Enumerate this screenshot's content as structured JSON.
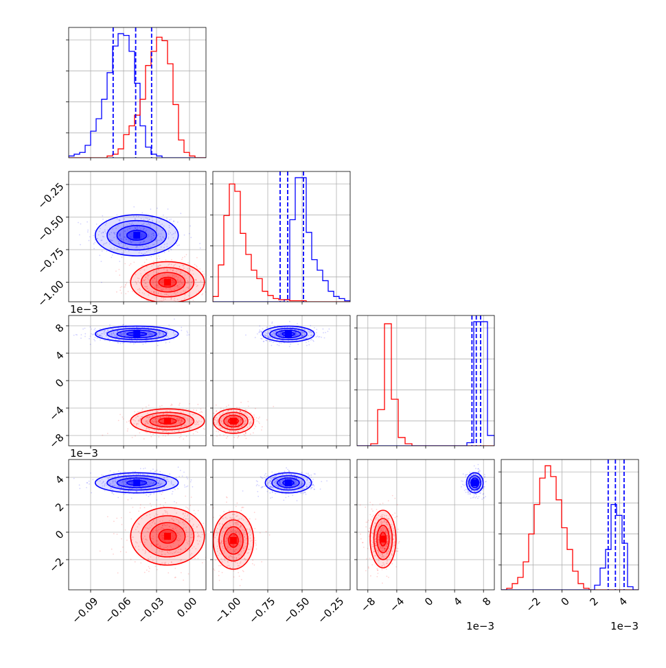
{
  "chart_data": [
    {
      "type": "histogram",
      "panel": "hist-param-1",
      "x_range": [
        -0.11,
        0.015
      ],
      "x_ticks": [
        "-0.09",
        "-0.06",
        "-0.03",
        "0.00"
      ],
      "series": [
        {
          "color": "#0000ff",
          "bins": {
            "start": -0.11,
            "width": 0.005,
            "counts": [
              1,
              2,
              3,
              7,
              15,
              22,
              33,
              48,
              63,
              70,
              69,
              60,
              42,
              18,
              6,
              2,
              1,
              0,
              0,
              0,
              0,
              0,
              0,
              0,
              0
            ]
          }
        },
        {
          "color": "#ff0000",
          "bins": {
            "start": -0.11,
            "width": 0.005,
            "counts": [
              0,
              0,
              0,
              0,
              0,
              0,
              0,
              1,
              2,
              5,
              13,
              18,
              24,
              33,
              52,
              60,
              68,
              66,
              53,
              30,
              10,
              3,
              1,
              0,
              0
            ]
          }
        }
      ],
      "quantile_lines": {
        "color": "#0000ff",
        "values": [
          -0.0695,
          -0.049,
          -0.0345
        ]
      }
    },
    {
      "type": "histogram",
      "panel": "hist-param-2",
      "x_range": [
        -1.15,
        -0.15
      ],
      "x_ticks": [
        "-1.00",
        "-0.75",
        "-0.50",
        "-0.25"
      ],
      "series": [
        {
          "color": "#0000ff",
          "bins": {
            "start": -1.15,
            "width": 0.04,
            "counts": [
              0,
              0,
              0,
              0,
              0,
              0,
              0,
              0,
              0,
              0,
              0,
              0,
              0,
              2,
              78,
              118,
              118,
              66,
              40,
              30,
              20,
              10,
              5,
              3,
              1
            ]
          }
        },
        {
          "color": "#ff0000",
          "bins": {
            "start": -1.15,
            "width": 0.04,
            "counts": [
              5,
              35,
              82,
              112,
              105,
              65,
              45,
              30,
              22,
              10,
              6,
              3,
              2,
              2,
              1,
              1,
              1,
              0,
              0,
              0,
              0,
              0,
              0,
              0,
              0
            ]
          }
        }
      ],
      "quantile_lines": {
        "color": "#0000ff",
        "values": [
          -0.66,
          -0.605,
          -0.49
        ]
      }
    },
    {
      "type": "histogram",
      "panel": "hist-param-3",
      "x_scale_label": "1e−3",
      "x_range": [
        -9.5,
        9.5
      ],
      "x_ticks": [
        "-8",
        "-4",
        "0",
        "4",
        "8"
      ],
      "series": [
        {
          "color": "#ff0000",
          "bins": {
            "start": -9.5,
            "width": 0.95,
            "counts": [
              0,
              0,
              2,
              35,
              118,
              45,
              8,
              2,
              0,
              0,
              0,
              0,
              0,
              0,
              0,
              0,
              0,
              0,
              0,
              0
            ]
          }
        },
        {
          "color": "#0000ff",
          "bins": {
            "start": -9.5,
            "width": 0.95,
            "counts": [
              0,
              0,
              0,
              0,
              0,
              0,
              0,
              0,
              0,
              0,
              0,
              0,
              0,
              0,
              0,
              0,
              3,
              120,
              120,
              10
            ]
          }
        }
      ],
      "quantile_lines": {
        "color": "#0000ff",
        "values": [
          6.4,
          7.0,
          7.6
        ]
      }
    },
    {
      "type": "histogram",
      "panel": "hist-param-4",
      "x_scale_label": "1e−3",
      "x_range": [
        -4.2,
        5.3
      ],
      "x_ticks": [
        "-2",
        "0",
        "2",
        "4"
      ],
      "series": [
        {
          "color": "#ff0000",
          "bins": {
            "start": -4.2,
            "width": 0.38,
            "counts": [
              0,
              1,
              4,
              8,
              18,
              36,
              55,
              72,
              80,
              73,
              58,
              40,
              26,
              12,
              4,
              1,
              0,
              0,
              0,
              0,
              0,
              0,
              0,
              0,
              0
            ]
          }
        },
        {
          "color": "#0000ff",
          "bins": {
            "start": -4.2,
            "width": 0.38,
            "counts": [
              0,
              0,
              0,
              0,
              0,
              0,
              0,
              0,
              0,
              0,
              0,
              0,
              0,
              0,
              0,
              0,
              0,
              3,
              14,
              26,
              55,
              48,
              30,
              2,
              0
            ]
          }
        }
      ],
      "quantile_lines": {
        "color": "#0000ff",
        "values": [
          3.2,
          3.7,
          4.3
        ]
      }
    },
    {
      "type": "scatter-density",
      "panel": "corner-2-1",
      "x_range": [
        -0.11,
        0.015
      ],
      "y_range": [
        -1.15,
        -0.15
      ],
      "y_ticks": [
        "-0.25",
        "-0.50",
        "-0.75",
        "-1.00"
      ],
      "series": [
        {
          "color": "#0000ff",
          "center": [
            -0.048,
            -0.64
          ],
          "spread": [
            0.018,
            0.075
          ]
        },
        {
          "color": "#ff0000",
          "center": [
            -0.02,
            -1.0
          ],
          "spread": [
            0.016,
            0.075
          ]
        }
      ]
    },
    {
      "type": "scatter-density",
      "panel": "corner-3-1",
      "x_range": [
        -0.11,
        0.015
      ],
      "y_range": [
        -9.5,
        9.5
      ],
      "y_scale_label": "1e−3",
      "y_ticks": [
        "8",
        "4",
        "0",
        "-4",
        "-8"
      ],
      "series": [
        {
          "color": "#0000ff",
          "center": [
            -0.048,
            6.8
          ],
          "spread": [
            0.018,
            0.55
          ]
        },
        {
          "color": "#ff0000",
          "center": [
            -0.02,
            -5.9
          ],
          "spread": [
            0.016,
            0.85
          ]
        }
      ]
    },
    {
      "type": "scatter-density",
      "panel": "corner-3-2",
      "x_range": [
        -1.15,
        -0.15
      ],
      "y_range": [
        -9.5,
        9.5
      ],
      "series": [
        {
          "color": "#0000ff",
          "center": [
            -0.6,
            6.8
          ],
          "spread": [
            0.09,
            0.55
          ]
        },
        {
          "color": "#ff0000",
          "center": [
            -1.0,
            -5.9
          ],
          "spread": [
            0.07,
            0.85
          ]
        }
      ]
    },
    {
      "type": "scatter-density",
      "panel": "corner-4-1",
      "x_range": [
        -0.11,
        0.015
      ],
      "y_range": [
        -4.2,
        5.3
      ],
      "y_scale_label": "1e−3",
      "y_ticks": [
        "4",
        "2",
        "0",
        "-2"
      ],
      "series": [
        {
          "color": "#0000ff",
          "center": [
            -0.048,
            3.6
          ],
          "spread": [
            0.018,
            0.35
          ]
        },
        {
          "color": "#ff0000",
          "center": [
            -0.02,
            -0.3
          ],
          "spread": [
            0.016,
            1.0
          ]
        }
      ]
    },
    {
      "type": "scatter-density",
      "panel": "corner-4-2",
      "x_range": [
        -1.15,
        -0.15
      ],
      "y_range": [
        -4.2,
        5.3
      ],
      "series": [
        {
          "color": "#0000ff",
          "center": [
            -0.6,
            3.6
          ],
          "spread": [
            0.08,
            0.35
          ]
        },
        {
          "color": "#ff0000",
          "center": [
            -1.0,
            -0.6
          ],
          "spread": [
            0.07,
            1.0
          ]
        }
      ]
    },
    {
      "type": "scatter-density",
      "panel": "corner-4-3",
      "x_range": [
        -9.5,
        9.5
      ],
      "y_range": [
        -4.2,
        5.3
      ],
      "series": [
        {
          "color": "#0000ff",
          "center": [
            6.8,
            3.6
          ],
          "spread": [
            0.55,
            0.35
          ]
        },
        {
          "color": "#ff0000",
          "center": [
            -5.9,
            -0.5
          ],
          "spread": [
            0.85,
            1.0
          ]
        }
      ]
    }
  ]
}
